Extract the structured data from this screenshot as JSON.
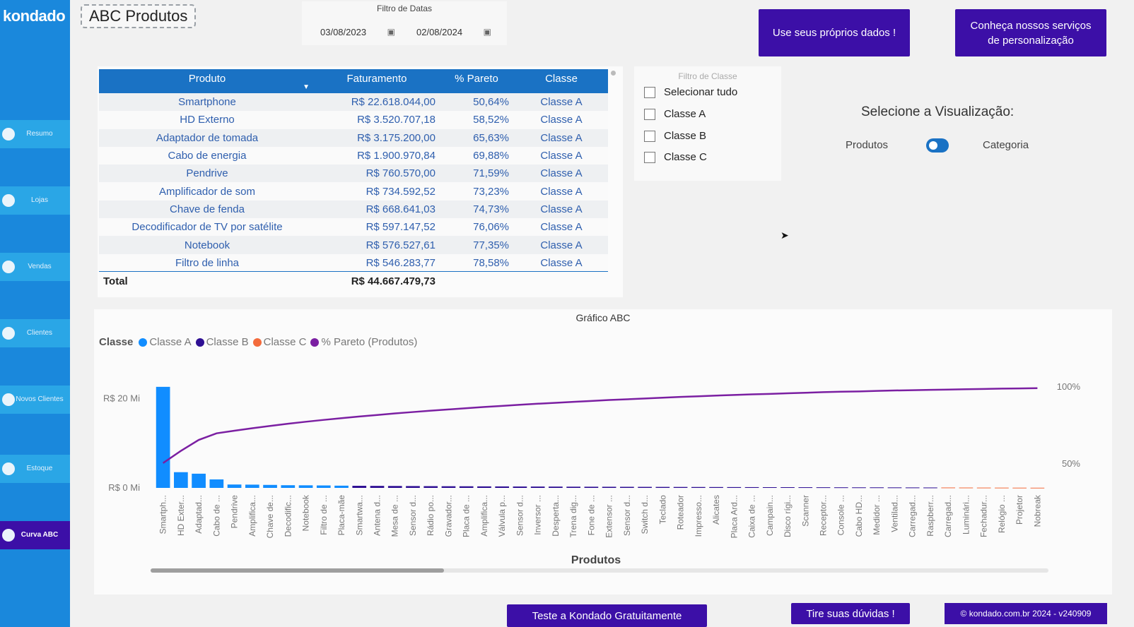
{
  "app": {
    "logo": "kondado"
  },
  "sidebar": {
    "items": [
      {
        "label": "Resumo",
        "active": false
      },
      {
        "label": "Lojas",
        "active": false
      },
      {
        "label": "Vendas",
        "active": false
      },
      {
        "label": "Clientes",
        "active": false
      },
      {
        "label": "Novos Clientes",
        "active": false
      },
      {
        "label": "Estoque",
        "active": false
      },
      {
        "label": "Curva ABC",
        "active": true
      }
    ]
  },
  "header": {
    "title": "ABC Produtos",
    "date_filter": {
      "title": "Filtro de Datas",
      "start": "03/08/2023",
      "end": "02/08/2024"
    },
    "btn_own_data": "Use seus próprios dados !",
    "btn_services": "Conheça nossos serviços de personalização"
  },
  "table": {
    "columns": [
      "Produto",
      "Faturamento",
      "% Pareto",
      "Classe"
    ],
    "rows": [
      [
        "Smartphone",
        "R$ 22.618.044,00",
        "50,64%",
        "Classe A"
      ],
      [
        "HD Externo",
        "R$ 3.520.707,18",
        "58,52%",
        "Classe A"
      ],
      [
        "Adaptador de tomada",
        "R$ 3.175.200,00",
        "65,63%",
        "Classe A"
      ],
      [
        "Cabo de energia",
        "R$ 1.900.970,84",
        "69,88%",
        "Classe A"
      ],
      [
        "Pendrive",
        "R$ 760.570,00",
        "71,59%",
        "Classe A"
      ],
      [
        "Amplificador de som",
        "R$ 734.592,52",
        "73,23%",
        "Classe A"
      ],
      [
        "Chave de fenda",
        "R$ 668.641,03",
        "74,73%",
        "Classe A"
      ],
      [
        "Decodificador de TV por satélite",
        "R$ 597.147,52",
        "76,06%",
        "Classe A"
      ],
      [
        "Notebook",
        "R$ 576.527,61",
        "77,35%",
        "Classe A"
      ],
      [
        "Filtro de linha",
        "R$ 546.283,77",
        "78,58%",
        "Classe A"
      ]
    ],
    "total_label": "Total",
    "total_value": "R$ 44.667.479,73"
  },
  "class_filter": {
    "title": "Filtro de Classe",
    "options": [
      "Selecionar tudo",
      "Classe A",
      "Classe B",
      "Classe C"
    ]
  },
  "visualization": {
    "title": "Selecione a Visualização:",
    "left": "Produtos",
    "right": "Categoria"
  },
  "colors": {
    "classe_a": "#118dff",
    "classe_b": "#2e0f93",
    "classe_c": "#f36b3c",
    "pareto": "#7b1fa2"
  },
  "chart_data": {
    "type": "bar",
    "title": "Gráfico ABC",
    "legend_title": "Classe",
    "legend": [
      "Classe A",
      "Classe B",
      "Classe C",
      "% Pareto (Produtos)"
    ],
    "xlabel": "Produtos",
    "y_ticks": [
      "R$ 0 Mi",
      "R$ 20 Mi"
    ],
    "y_right_ticks": [
      "50%",
      "100%"
    ],
    "ylim": [
      0,
      22.6
    ],
    "y2lim": [
      0.45,
      1.0
    ],
    "categories": [
      "Smartph...",
      "HD Exter...",
      "Adaptad...",
      "Cabo de ...",
      "Pendrive",
      "Amplifica...",
      "Chave de...",
      "Decodific...",
      "Notebook",
      "Filtro de ...",
      "Placa-mãe",
      "Smartwa...",
      "Antena d...",
      "Mesa de ...",
      "Sensor d...",
      "Rádio po...",
      "Gravador...",
      "Placa de ...",
      "Amplifica...",
      "Válvula p...",
      "Sensor d...",
      "Inversor ...",
      "Desperta...",
      "Trena dig...",
      "Fone de ...",
      "Extensor ...",
      "Sensor d...",
      "Switch d...",
      "Teclado",
      "Roteador",
      "Impresso...",
      "Alicates",
      "Placa Ard...",
      "Caixa de ...",
      "Campain...",
      "Disco rígi...",
      "Scanner",
      "Receptor...",
      "Console ...",
      "Cabo HD...",
      "Medidor ...",
      "Ventilad...",
      "Carregad...",
      "Raspberr...",
      "Carregad...",
      "Luminári...",
      "Fechadur...",
      "Relógio ...",
      "Projetor",
      "Nobreak"
    ],
    "classes": [
      "A",
      "A",
      "A",
      "A",
      "A",
      "A",
      "A",
      "A",
      "A",
      "A",
      "A",
      "B",
      "B",
      "B",
      "B",
      "B",
      "B",
      "B",
      "B",
      "B",
      "B",
      "B",
      "B",
      "B",
      "B",
      "B",
      "B",
      "B",
      "B",
      "B",
      "B",
      "B",
      "B",
      "B",
      "B",
      "B",
      "B",
      "B",
      "B",
      "B",
      "B",
      "B",
      "B",
      "B",
      "C",
      "C",
      "C",
      "C",
      "C",
      "C"
    ],
    "values": [
      22.62,
      3.52,
      3.18,
      1.9,
      0.76,
      0.73,
      0.67,
      0.6,
      0.58,
      0.55,
      0.5,
      0.47,
      0.45,
      0.43,
      0.41,
      0.39,
      0.37,
      0.36,
      0.34,
      0.33,
      0.31,
      0.3,
      0.29,
      0.27,
      0.26,
      0.25,
      0.24,
      0.23,
      0.22,
      0.21,
      0.2,
      0.19,
      0.18,
      0.17,
      0.16,
      0.16,
      0.15,
      0.14,
      0.13,
      0.12,
      0.12,
      0.11,
      0.1,
      0.09,
      0.09,
      0.08,
      0.07,
      0.06,
      0.05,
      0.04
    ],
    "pareto": [
      0.506,
      0.585,
      0.656,
      0.699,
      0.716,
      0.732,
      0.747,
      0.761,
      0.774,
      0.786,
      0.797,
      0.808,
      0.818,
      0.828,
      0.837,
      0.846,
      0.854,
      0.862,
      0.87,
      0.877,
      0.884,
      0.891,
      0.897,
      0.903,
      0.909,
      0.915,
      0.92,
      0.925,
      0.93,
      0.935,
      0.939,
      0.944,
      0.948,
      0.952,
      0.955,
      0.959,
      0.962,
      0.966,
      0.969,
      0.971,
      0.974,
      0.977,
      0.979,
      0.981,
      0.983,
      0.985,
      0.987,
      0.989,
      0.99,
      0.992
    ]
  },
  "footer": {
    "btn_trial": "Teste a Kondado Gratuitamente",
    "btn_questions": "Tire suas dúvidas !",
    "copyright": "© kondado.com.br 2024 - v240909"
  }
}
